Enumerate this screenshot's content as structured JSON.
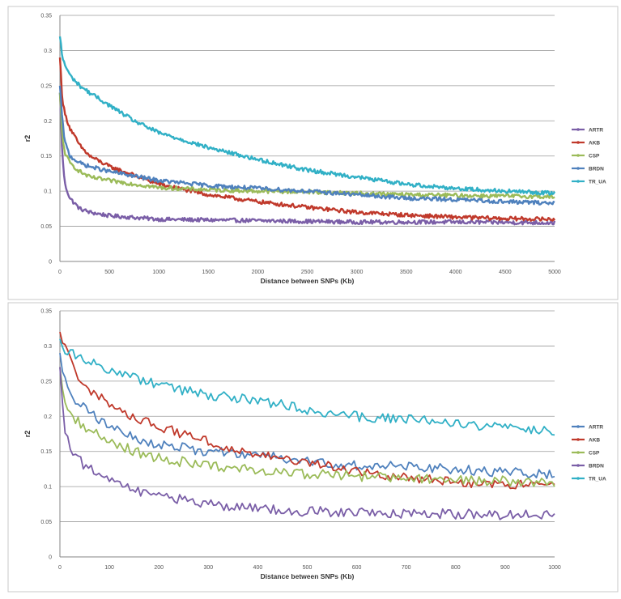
{
  "chart_data": [
    {
      "type": "line",
      "xlabel": "Distance between SNPs (Kb)",
      "ylabel": "r2",
      "xlim": [
        0,
        5000
      ],
      "ylim": [
        0,
        0.35
      ],
      "xticks": [
        "0",
        "500",
        "1000",
        "1500",
        "2000",
        "2500",
        "3000",
        "3500",
        "4000",
        "4500",
        "5000"
      ],
      "yticks": [
        "0",
        "0.05",
        "0.1",
        "0.15",
        "0.2",
        "0.25",
        "0.3",
        "0.35"
      ],
      "grid": "horizontal",
      "legend": "right",
      "series": [
        {
          "name": "ARTR",
          "color": "#7a5ea7",
          "x": [
            0,
            25,
            50,
            100,
            200,
            300,
            500,
            1000,
            2000,
            3000,
            4000,
            5000
          ],
          "y": [
            0.24,
            0.15,
            0.11,
            0.09,
            0.075,
            0.07,
            0.065,
            0.06,
            0.058,
            0.056,
            0.056,
            0.055
          ]
        },
        {
          "name": "AKB",
          "color": "#c0392b",
          "x": [
            0,
            25,
            50,
            100,
            200,
            300,
            500,
            1000,
            1500,
            2000,
            2500,
            3000,
            3500,
            4000,
            4500,
            5000
          ],
          "y": [
            0.29,
            0.23,
            0.21,
            0.19,
            0.165,
            0.15,
            0.135,
            0.11,
            0.095,
            0.085,
            0.077,
            0.07,
            0.066,
            0.063,
            0.061,
            0.06
          ]
        },
        {
          "name": "CSP",
          "color": "#9bbb59",
          "x": [
            0,
            25,
            50,
            100,
            200,
            300,
            500,
            1000,
            1500,
            2000,
            2500,
            3000,
            3500,
            4000,
            4500,
            5000
          ],
          "y": [
            0.24,
            0.175,
            0.155,
            0.14,
            0.128,
            0.12,
            0.115,
            0.105,
            0.102,
            0.1,
            0.099,
            0.097,
            0.095,
            0.094,
            0.093,
            0.092
          ]
        },
        {
          "name": "BRDN",
          "color": "#4f81bd",
          "x": [
            0,
            25,
            50,
            100,
            200,
            300,
            500,
            1000,
            1500,
            2000,
            2500,
            3000,
            3500,
            4000,
            4500,
            5000
          ],
          "y": [
            0.25,
            0.2,
            0.17,
            0.15,
            0.14,
            0.135,
            0.128,
            0.115,
            0.108,
            0.104,
            0.1,
            0.095,
            0.09,
            0.088,
            0.085,
            0.083
          ]
        },
        {
          "name": "TR_UA",
          "color": "#31b0c6",
          "x": [
            0,
            25,
            50,
            100,
            200,
            300,
            500,
            750,
            1000,
            1500,
            2000,
            2500,
            3000,
            3500,
            4000,
            4500,
            5000
          ],
          "y": [
            0.32,
            0.29,
            0.28,
            0.265,
            0.25,
            0.24,
            0.222,
            0.2,
            0.183,
            0.162,
            0.145,
            0.13,
            0.12,
            0.11,
            0.104,
            0.1,
            0.097
          ]
        }
      ]
    },
    {
      "type": "line",
      "xlabel": "Distance between SNPs (Kb)",
      "ylabel": "r2",
      "xlim": [
        0,
        1000
      ],
      "ylim": [
        0,
        0.35
      ],
      "xticks": [
        "0",
        "100",
        "200",
        "300",
        "400",
        "500",
        "600",
        "700",
        "800",
        "900",
        "1000"
      ],
      "yticks": [
        "0",
        "0.05",
        "0.1",
        "0.15",
        "0.2",
        "0.25",
        "0.3",
        "0.35"
      ],
      "grid": "horizontal",
      "legend": "right",
      "series": [
        {
          "name": "ARTR",
          "color": "#4f81bd",
          "x": [
            0,
            10,
            25,
            50,
            100,
            150,
            200,
            300,
            400,
            500,
            600,
            700,
            800,
            900,
            1000
          ],
          "y": [
            0.29,
            0.25,
            0.23,
            0.21,
            0.185,
            0.17,
            0.16,
            0.15,
            0.145,
            0.135,
            0.13,
            0.128,
            0.125,
            0.12,
            0.118
          ]
        },
        {
          "name": "AKB",
          "color": "#c0392b",
          "x": [
            0,
            10,
            25,
            50,
            100,
            150,
            200,
            300,
            400,
            500,
            600,
            700,
            800,
            900,
            1000
          ],
          "y": [
            0.32,
            0.3,
            0.27,
            0.245,
            0.215,
            0.2,
            0.185,
            0.163,
            0.145,
            0.133,
            0.123,
            0.113,
            0.107,
            0.103,
            0.1
          ]
        },
        {
          "name": "CSP",
          "color": "#9bbb59",
          "x": [
            0,
            10,
            25,
            50,
            100,
            150,
            200,
            300,
            400,
            500,
            600,
            700,
            800,
            900,
            1000
          ],
          "y": [
            0.27,
            0.22,
            0.2,
            0.185,
            0.165,
            0.15,
            0.14,
            0.13,
            0.122,
            0.118,
            0.115,
            0.113,
            0.11,
            0.108,
            0.105
          ]
        },
        {
          "name": "BRDN",
          "color": "#7a5ea7",
          "x": [
            0,
            10,
            25,
            50,
            100,
            150,
            200,
            300,
            400,
            500,
            600,
            700,
            800,
            900,
            1000
          ],
          "y": [
            0.27,
            0.18,
            0.15,
            0.13,
            0.11,
            0.095,
            0.088,
            0.075,
            0.068,
            0.065,
            0.063,
            0.062,
            0.061,
            0.06,
            0.06
          ]
        },
        {
          "name": "TR_UA",
          "color": "#31b0c6",
          "x": [
            0,
            10,
            25,
            50,
            100,
            150,
            200,
            300,
            400,
            500,
            600,
            700,
            800,
            900,
            1000
          ],
          "y": [
            0.31,
            0.295,
            0.29,
            0.28,
            0.265,
            0.255,
            0.245,
            0.23,
            0.222,
            0.21,
            0.2,
            0.195,
            0.19,
            0.185,
            0.18
          ]
        }
      ]
    }
  ]
}
